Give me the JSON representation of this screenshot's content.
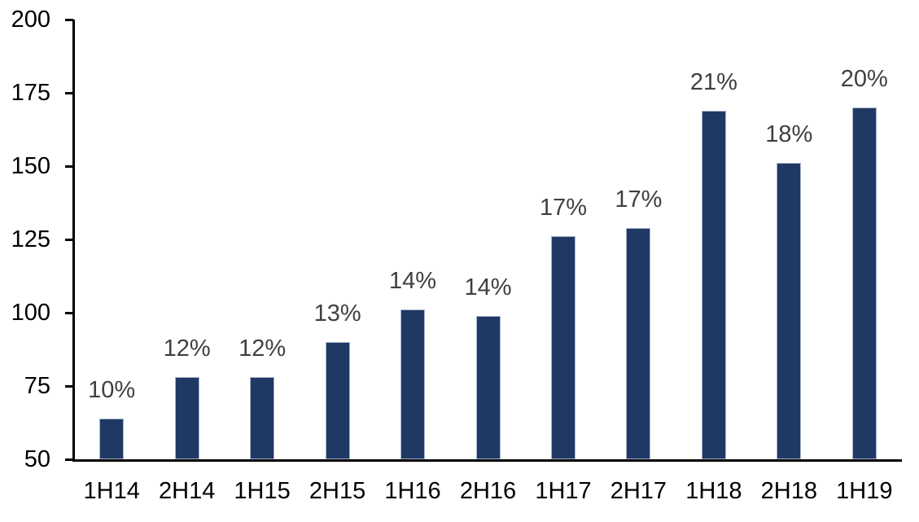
{
  "chart_data": {
    "type": "bar",
    "title": "",
    "xlabel": "",
    "ylabel": "",
    "categories": [
      "1H14",
      "2H14",
      "1H15",
      "2H15",
      "1H16",
      "2H16",
      "1H17",
      "2H17",
      "1H18",
      "2H18",
      "1H19"
    ],
    "values": [
      64,
      78,
      78,
      90,
      101,
      99,
      126,
      129,
      169,
      151,
      170
    ],
    "bar_labels": [
      "10%",
      "12%",
      "12%",
      "13%",
      "14%",
      "14%",
      "17%",
      "17%",
      "21%",
      "18%",
      "20%"
    ],
    "ylim": [
      50,
      200
    ],
    "yticks": [
      50,
      75,
      100,
      125,
      150,
      175,
      200
    ],
    "grid": false,
    "legend": "none",
    "colors": {
      "bar_fill": "#1F3864",
      "bar_border": "#A9B4CB",
      "data_label": "#404040",
      "axis": "#000000",
      "background": "#FFFFFF"
    }
  }
}
